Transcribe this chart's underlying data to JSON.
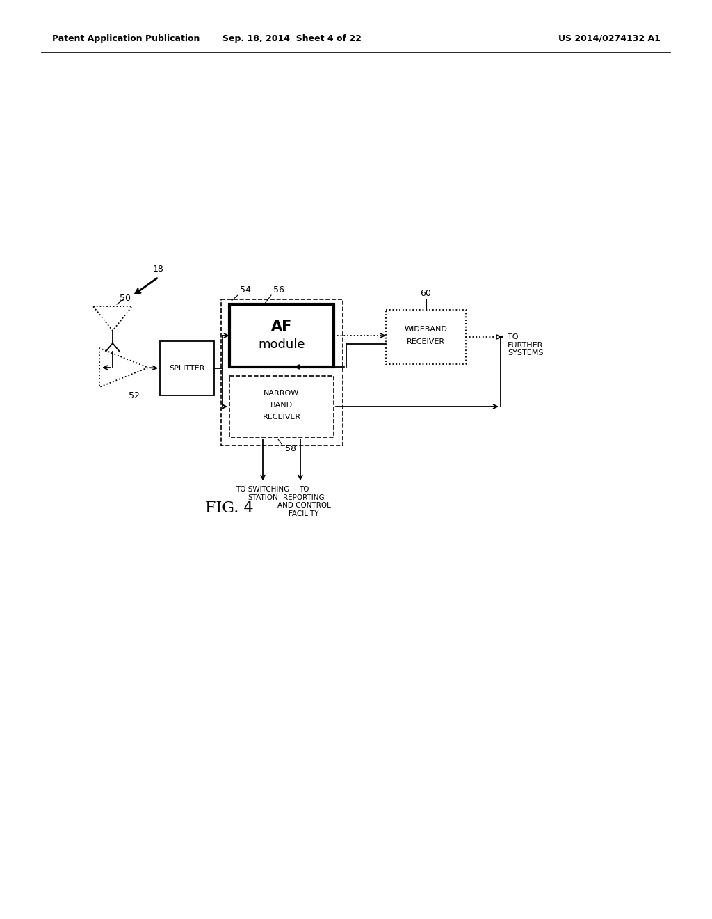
{
  "bg_color": "#ffffff",
  "header_left": "Patent Application Publication",
  "header_center": "Sep. 18, 2014  Sheet 4 of 22",
  "header_right": "US 2014/0274132 A1",
  "fig_label": "FIG. 4",
  "label_18": "18",
  "label_50": "50",
  "label_52": "52",
  "label_54": "54",
  "label_56": "56",
  "label_58": "58",
  "label_60": "60",
  "splitter_text": "SPLITTER",
  "af_text1": "AF",
  "af_text2": "module",
  "nb_text1": "NARROW",
  "nb_text2": "BAND",
  "nb_text3": "RECEIVER",
  "wb_text1": "WIDEBAND",
  "wb_text2": "RECEIVER",
  "to_switching": "TO SWITCHING\nSTATION",
  "to_reporting": "TO\nREPORTING\nAND CONTROL\nFACILITY",
  "to_further": "TO\nFURTHER\nSYSTEMS"
}
